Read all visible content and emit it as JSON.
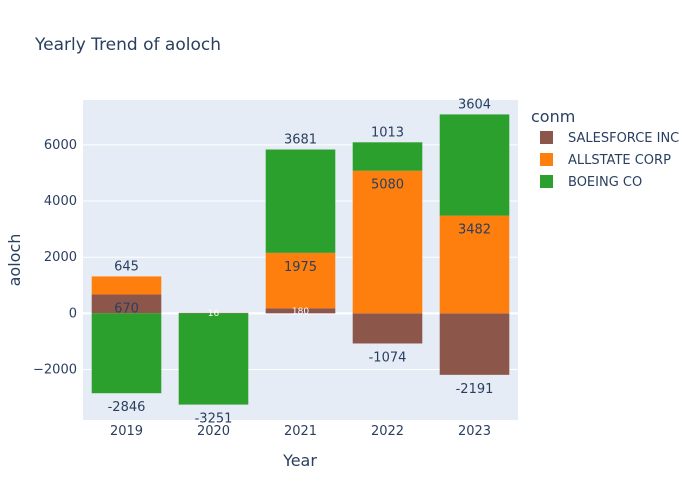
{
  "chart_data": {
    "type": "bar",
    "barmode": "relative",
    "title": "Yearly Trend of aoloch",
    "xlabel": "Year",
    "ylabel": "aoloch",
    "categories": [
      "2019",
      "2020",
      "2021",
      "2022",
      "2023"
    ],
    "ylim": [
      -3800,
      7600
    ],
    "yticks": [
      -2000,
      0,
      2000,
      4000,
      6000
    ],
    "ytick_labels": [
      "−2000",
      "0",
      "2000",
      "4000",
      "6000"
    ],
    "grid": true,
    "legend_title": "conm",
    "legend_position": "right",
    "series": [
      {
        "name": "SALESFORCE INC",
        "color": "#8c564b",
        "values": [
          670,
          16,
          180,
          -1074,
          -2191
        ],
        "labels": [
          "670",
          "16",
          "180",
          "-1074",
          "-2191"
        ]
      },
      {
        "name": "ALLSTATE CORP",
        "color": "#ff7f0e",
        "values": [
          645,
          null,
          1975,
          5080,
          3482
        ],
        "labels": [
          "645",
          "",
          "1975",
          "5080",
          "3482"
        ]
      },
      {
        "name": "BOEING CO",
        "color": "#2ca02c",
        "values": [
          -2846,
          -3251,
          3681,
          1013,
          3604
        ],
        "labels": [
          "-2846",
          "-3251",
          "3681",
          "1013",
          "3604"
        ]
      }
    ]
  }
}
